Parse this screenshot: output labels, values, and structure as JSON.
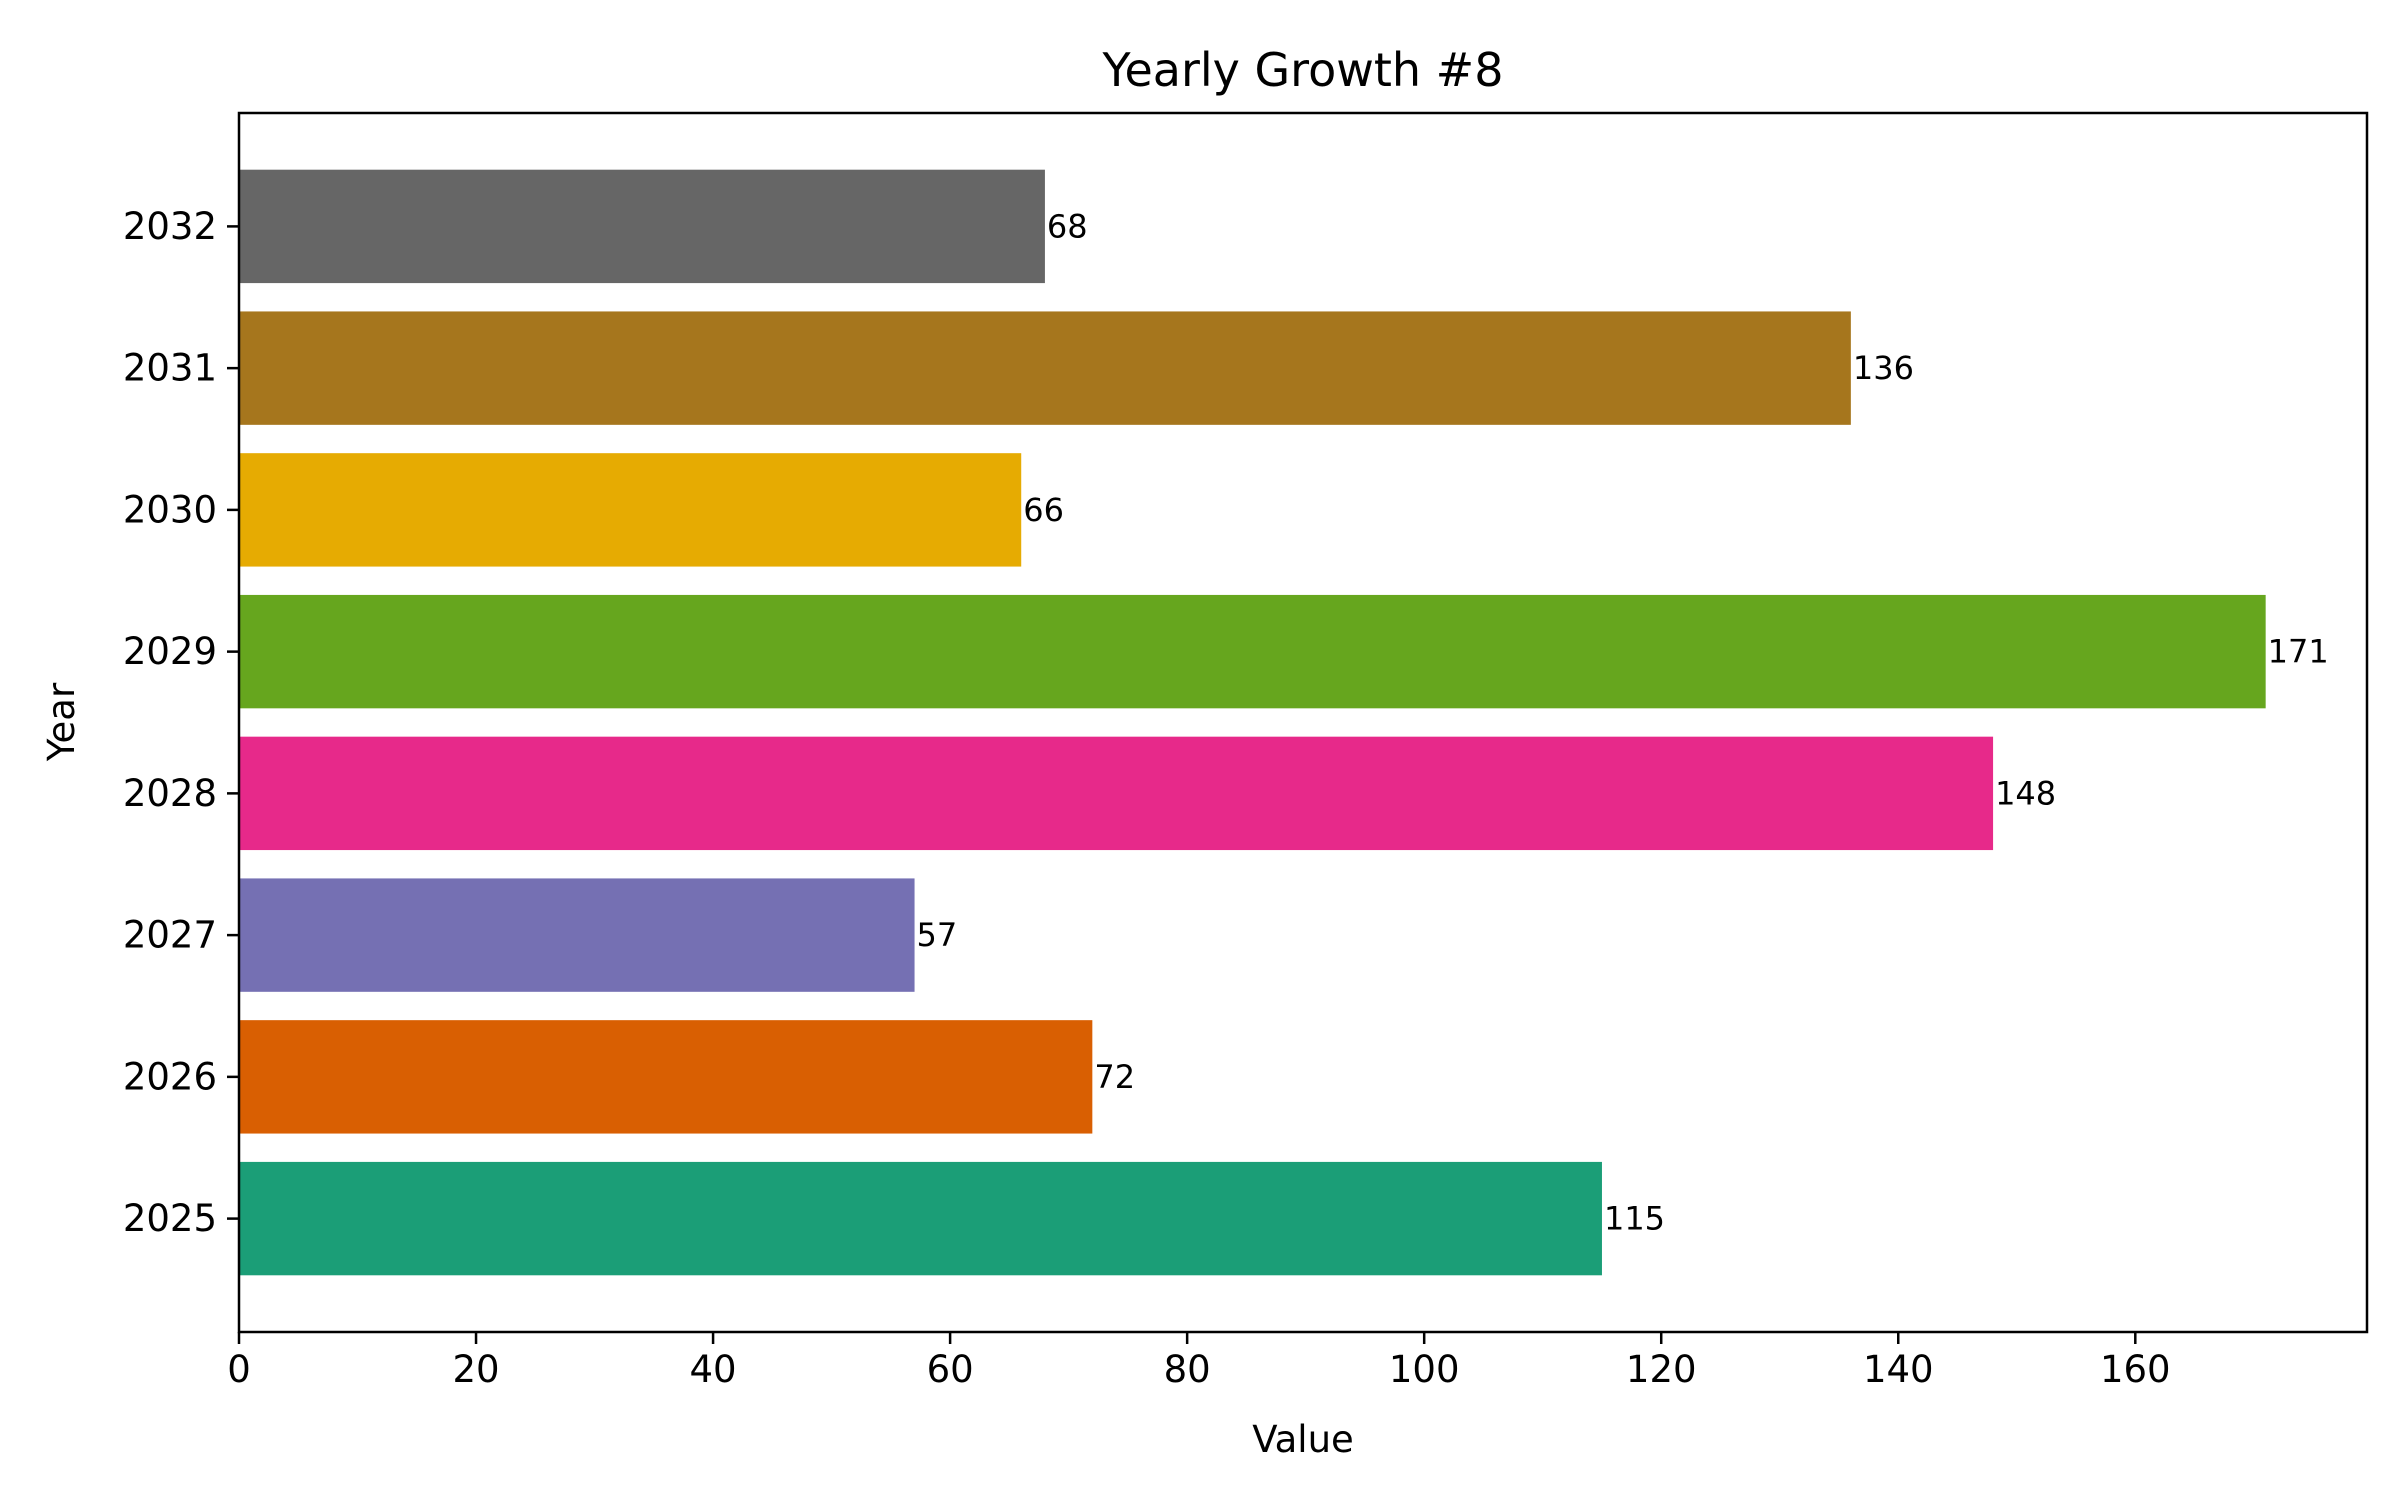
{
  "chart_data": {
    "type": "bar",
    "orientation": "horizontal",
    "title": "Yearly Growth #8",
    "xlabel": "Value",
    "ylabel": "Year",
    "categories": [
      "2025",
      "2026",
      "2027",
      "2028",
      "2029",
      "2030",
      "2031",
      "2032"
    ],
    "values": [
      115,
      72,
      57,
      148,
      171,
      66,
      136,
      68
    ],
    "colors": [
      "#1b9e77",
      "#d95f02",
      "#7570b3",
      "#e7298a",
      "#66a61e",
      "#e6ab02",
      "#a6761d",
      "#666666"
    ],
    "xlim": [
      0,
      179.55
    ],
    "xticks": [
      0,
      20,
      40,
      60,
      80,
      100,
      120,
      140,
      160
    ],
    "grid": false,
    "legend": "none",
    "show_data_labels": true
  }
}
